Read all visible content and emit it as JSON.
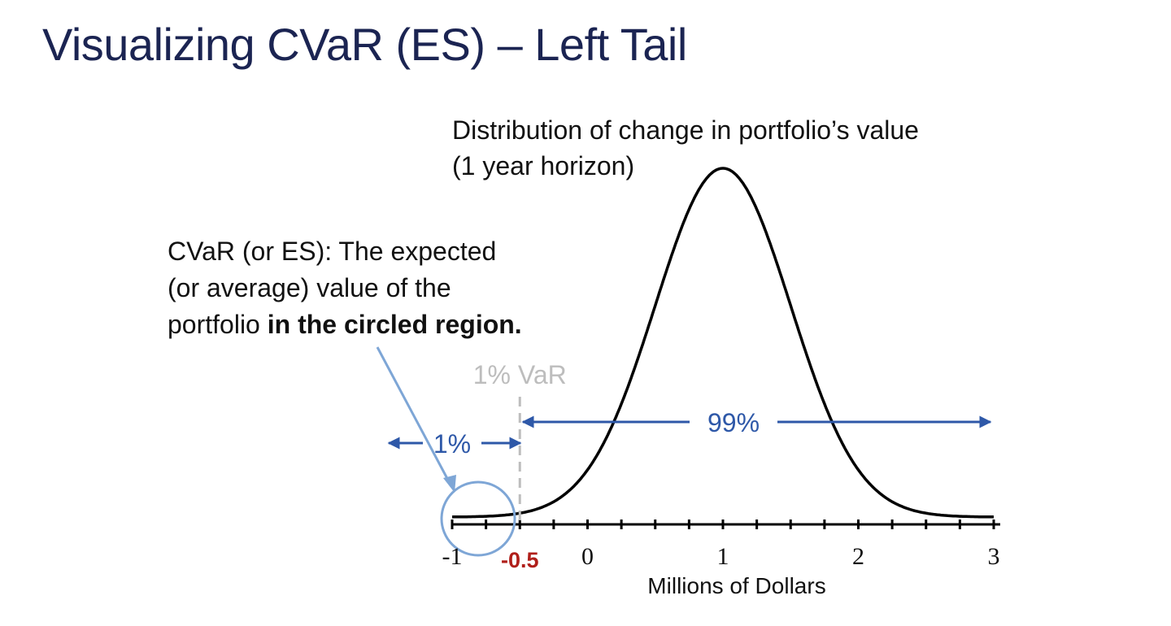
{
  "title": "Visualizing CVaR (ES) – Left Tail",
  "caption": {
    "line1": "Distribution of change in portfolio’s value",
    "line2": "(1 year horizon)"
  },
  "callout": {
    "line1": "CVaR (or ES): The expected",
    "line2": "(or average) value of the",
    "line3_regular": "portfolio ",
    "line3_bold": "in the circled region."
  },
  "chart_data": {
    "type": "line",
    "xlabel": "Millions of Dollars",
    "xlim": [
      -1,
      3
    ],
    "x_ticks": [
      "-1",
      "0",
      "1",
      "2",
      "3"
    ],
    "highlight_tick": "-0.5",
    "distribution": {
      "mean": 1,
      "sd": 0.5
    },
    "var_line": {
      "x": -0.5,
      "label": "1% VaR"
    },
    "left_tail_label": "1%",
    "right_region_label": "99%",
    "colors": {
      "curve": "#000000",
      "arrows": "#2e58a8",
      "circle": "#7ea6d6",
      "var_line": "#bdbdbd",
      "highlight": "#b01f1a"
    }
  }
}
